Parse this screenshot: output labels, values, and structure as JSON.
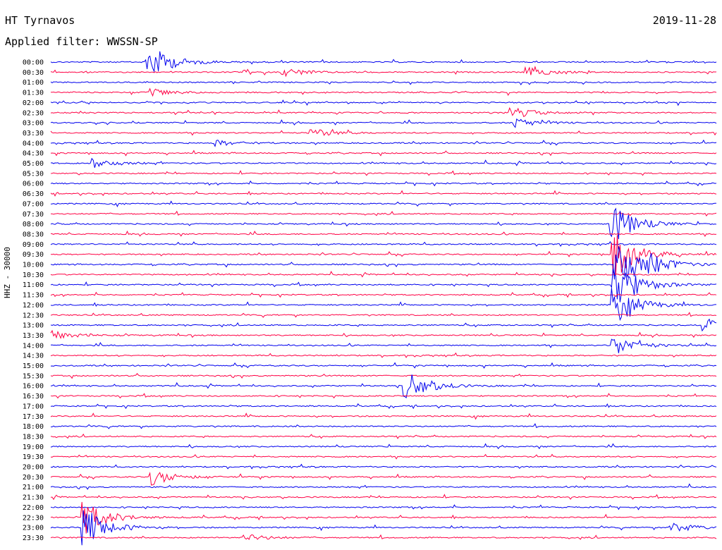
{
  "header": {
    "station": "HT Tyrnavos",
    "date": "2019-11-28",
    "filter": "Applied filter: WWSSN-SP"
  },
  "axis": {
    "ylabel": "HHZ - 30000"
  },
  "colors": {
    "even_trace": "#0000ee",
    "odd_trace": "#ff0044",
    "background": "#ffffff"
  },
  "chart_data": {
    "type": "line",
    "title": "HT Tyrnavos",
    "subtitle": "Applied filter: WWSSN-SP",
    "ylabel": "HHZ - 30000",
    "xlabel": "",
    "grid": false,
    "legend": "none",
    "rows": [
      "00:00",
      "00:30",
      "01:00",
      "01:30",
      "02:00",
      "02:30",
      "03:00",
      "03:30",
      "04:00",
      "04:30",
      "05:00",
      "05:30",
      "06:00",
      "06:30",
      "07:00",
      "07:30",
      "08:00",
      "08:30",
      "09:00",
      "09:30",
      "10:00",
      "10:30",
      "11:00",
      "11:30",
      "12:00",
      "12:30",
      "13:00",
      "13:30",
      "14:00",
      "14:30",
      "15:00",
      "15:30",
      "16:00",
      "16:30",
      "17:00",
      "17:30",
      "18:00",
      "18:30",
      "19:00",
      "19:30",
      "20:00",
      "20:30",
      "21:00",
      "21:30",
      "22:00",
      "22:30",
      "23:00",
      "23:30"
    ],
    "x_range_minutes": [
      0,
      30
    ],
    "events": [
      {
        "row": "00:00",
        "minute": 4.4,
        "amplitude": 26
      },
      {
        "row": "00:30",
        "minute": 10.5,
        "amplitude": 6
      },
      {
        "row": "00:30",
        "minute": 21.5,
        "amplitude": 6
      },
      {
        "row": "01:30",
        "minute": 4.6,
        "amplitude": 5
      },
      {
        "row": "02:30",
        "minute": 20.8,
        "amplitude": 7
      },
      {
        "row": "03:00",
        "minute": 21.0,
        "amplitude": 7
      },
      {
        "row": "03:30",
        "minute": 11.8,
        "amplitude": 6
      },
      {
        "row": "04:00",
        "minute": 7.5,
        "amplitude": 4
      },
      {
        "row": "05:00",
        "minute": 2.0,
        "amplitude": 6
      },
      {
        "row": "08:00",
        "minute": 25.3,
        "amplitude": 30
      },
      {
        "row": "09:30",
        "minute": 25.4,
        "amplitude": 36
      },
      {
        "row": "10:00",
        "minute": 25.5,
        "amplitude": 40
      },
      {
        "row": "10:00",
        "minute": 27.0,
        "amplitude": 9
      },
      {
        "row": "11:00",
        "minute": 25.4,
        "amplitude": 40
      },
      {
        "row": "12:00",
        "minute": 25.4,
        "amplitude": 28
      },
      {
        "row": "13:00",
        "minute": 29.5,
        "amplitude": 10
      },
      {
        "row": "13:30",
        "minute": 0.0,
        "amplitude": 7
      },
      {
        "row": "14:00",
        "minute": 25.4,
        "amplitude": 14
      },
      {
        "row": "16:00",
        "minute": 16.0,
        "amplitude": 22
      },
      {
        "row": "20:30",
        "minute": 4.6,
        "amplitude": 11
      },
      {
        "row": "22:30",
        "minute": 1.5,
        "amplitude": 25
      },
      {
        "row": "23:00",
        "minute": 1.5,
        "amplitude": 28
      },
      {
        "row": "23:00",
        "minute": 28.0,
        "amplitude": 7
      },
      {
        "row": "23:30",
        "minute": 8.8,
        "amplitude": 5
      }
    ]
  }
}
